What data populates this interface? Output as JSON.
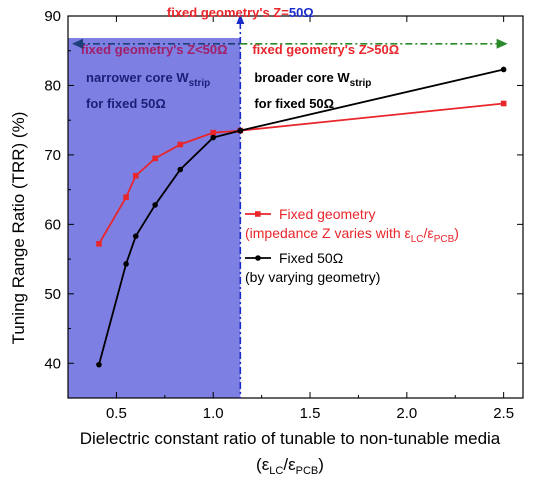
{
  "chart_data": {
    "type": "line",
    "xlabel": "Dielectric constant ratio of tunable to non-tunable media",
    "xlabel_line2": "(εLC/εPCB)",
    "ylabel": "Tuning Range Ratio (TRR) (%)",
    "xlim": [
      0.25,
      2.6
    ],
    "ylim": [
      35,
      90
    ],
    "xticks": [
      0.5,
      1.0,
      1.5,
      2.0,
      2.5
    ],
    "xtick_labels": [
      "0.5",
      "1.0",
      "1.5",
      "2.0",
      "2.5"
    ],
    "yticks": [
      40,
      50,
      60,
      70,
      80,
      90
    ],
    "ytick_labels": [
      "40",
      "50",
      "60",
      "70",
      "80",
      "90"
    ],
    "grid": false,
    "legend_position": "center-right",
    "series": [
      {
        "name": "Fixed geometry",
        "name_line2": "(impedance Z varies with εLC/εPCB)",
        "color": "#e8262b",
        "marker": "square",
        "x": [
          0.41,
          0.55,
          0.6,
          0.7,
          0.83,
          1.0,
          1.14,
          2.5
        ],
        "y": [
          57.2,
          63.9,
          67.0,
          69.5,
          71.5,
          73.2,
          73.5,
          77.4
        ]
      },
      {
        "name": "Fixed 50Ω",
        "name_line2": "(by varying geometry)",
        "color": "#000000",
        "marker": "circle",
        "x": [
          0.41,
          0.55,
          0.6,
          0.7,
          0.83,
          1.0,
          1.14,
          2.5
        ],
        "y": [
          39.8,
          54.3,
          58.3,
          62.8,
          67.9,
          72.5,
          73.5,
          82.3
        ]
      }
    ],
    "annotations": {
      "top": "fixed geometry's Z=50Ω",
      "left_header": "fixed geometry's Z<50Ω",
      "right_header": "fixed geometry's Z>50Ω",
      "left_note1": "narrower core W",
      "left_note1_sub": "strip",
      "left_note2": "for fixed 50Ω",
      "right_note1": "broader core W",
      "right_note1_sub": "strip",
      "right_note2": "for fixed 50Ω"
    },
    "colors": {
      "shaded_region": "#7778e0",
      "left_header": "#a0206a",
      "right_header": "#e8262b",
      "left_note": "#1c1f78",
      "divider": "#1a2bcc",
      "left_arrow": "#1c3f7a",
      "right_arrow": "#2a8a2a"
    },
    "shaded_x_range": [
      0.25,
      1.14
    ],
    "divider_x": 1.14,
    "arrow_y": 86
  }
}
